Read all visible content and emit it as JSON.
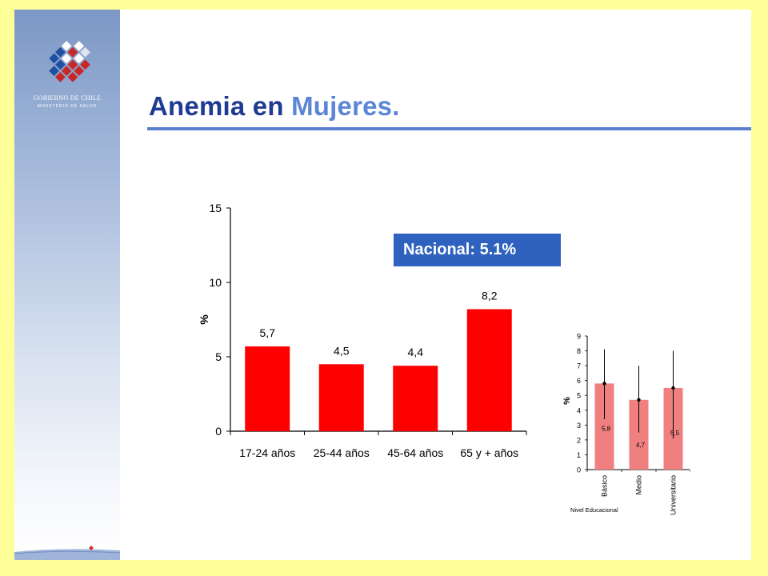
{
  "branding": {
    "org_name": "GOBIERNO DE CHILE",
    "org_subtitle": "MINISTERIO DE SALUD"
  },
  "slide": {
    "title_part1": "Anemia en",
    "title_part2": "Mujeres.",
    "national_badge": "Nacional: 5.1%"
  },
  "colors": {
    "slide_border": "#ffff99",
    "title_dark": "#1f3a93",
    "title_accent": "#5b86d6",
    "badge_bg": "#2f62bf",
    "main_bar": "#ff0000",
    "small_bar": "#f08080"
  },
  "chart_data": [
    {
      "type": "bar",
      "categories": [
        "17-24 años",
        "25-44 años",
        "45-64 años",
        "65 y + años"
      ],
      "values": [
        5.7,
        4.5,
        4.4,
        8.2
      ],
      "data_labels": [
        "5,7",
        "4,5",
        "4,4",
        "8,2"
      ],
      "ylabel": "%",
      "ylim": [
        0,
        15
      ],
      "yticks": [
        0,
        5,
        10,
        15
      ],
      "grid": false
    },
    {
      "type": "bar",
      "categories": [
        "Básico",
        "Medio",
        "Universitario"
      ],
      "values": [
        5.8,
        4.7,
        5.5
      ],
      "data_labels": [
        "5,8",
        "4,7",
        "5,5"
      ],
      "error_low": [
        3.4,
        2.5,
        2.1
      ],
      "error_high": [
        8.1,
        7.0,
        8.0
      ],
      "xlabel": "Nivel Educacional",
      "ylabel": "%",
      "ylim": [
        0,
        9
      ],
      "yticks": [
        0,
        1,
        2,
        3,
        4,
        5,
        6,
        7,
        8,
        9
      ],
      "grid": false
    }
  ]
}
